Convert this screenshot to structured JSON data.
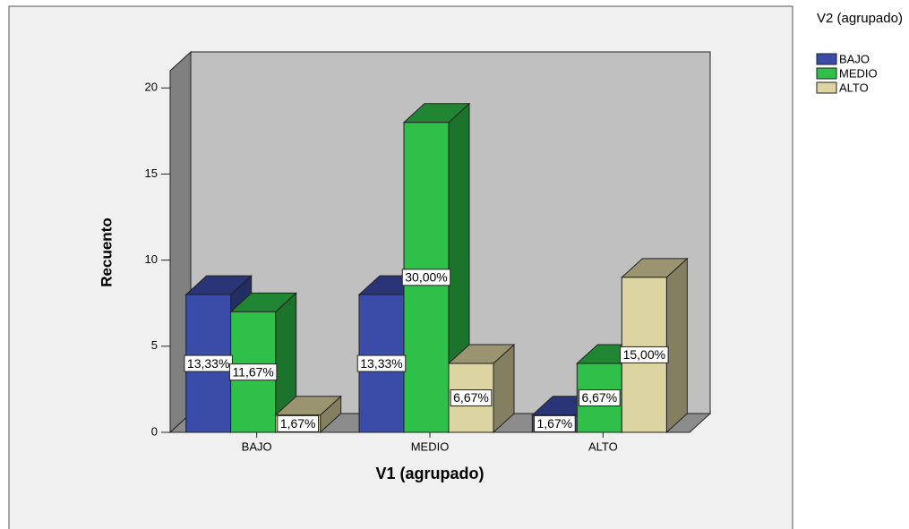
{
  "chart_data": {
    "type": "bar3d",
    "x_label": "V1 (agrupado)",
    "y_label": "Recuento",
    "legend_title": "V2 (agrupado)",
    "categories": [
      "BAJO",
      "MEDIO",
      "ALTO"
    ],
    "series": [
      {
        "name": "BAJO",
        "color": "#3a4ca8",
        "values": [
          8,
          8,
          1
        ],
        "value_labels": [
          "13,33%",
          "13,33%",
          "1,67%"
        ]
      },
      {
        "name": "MEDIO",
        "color": "#2fc04a",
        "values": [
          7,
          18,
          4
        ],
        "value_labels": [
          "11,67%",
          "30,00%",
          "6,67%"
        ]
      },
      {
        "name": "ALTO",
        "color": "#dcd4a2",
        "values": [
          1,
          4,
          9
        ],
        "value_labels": [
          "1,67%",
          "6,67%",
          "15,00%"
        ]
      }
    ],
    "ylim": [
      0,
      21
    ],
    "yticks": [
      0,
      5,
      10,
      15,
      20
    ],
    "legend": "right"
  }
}
